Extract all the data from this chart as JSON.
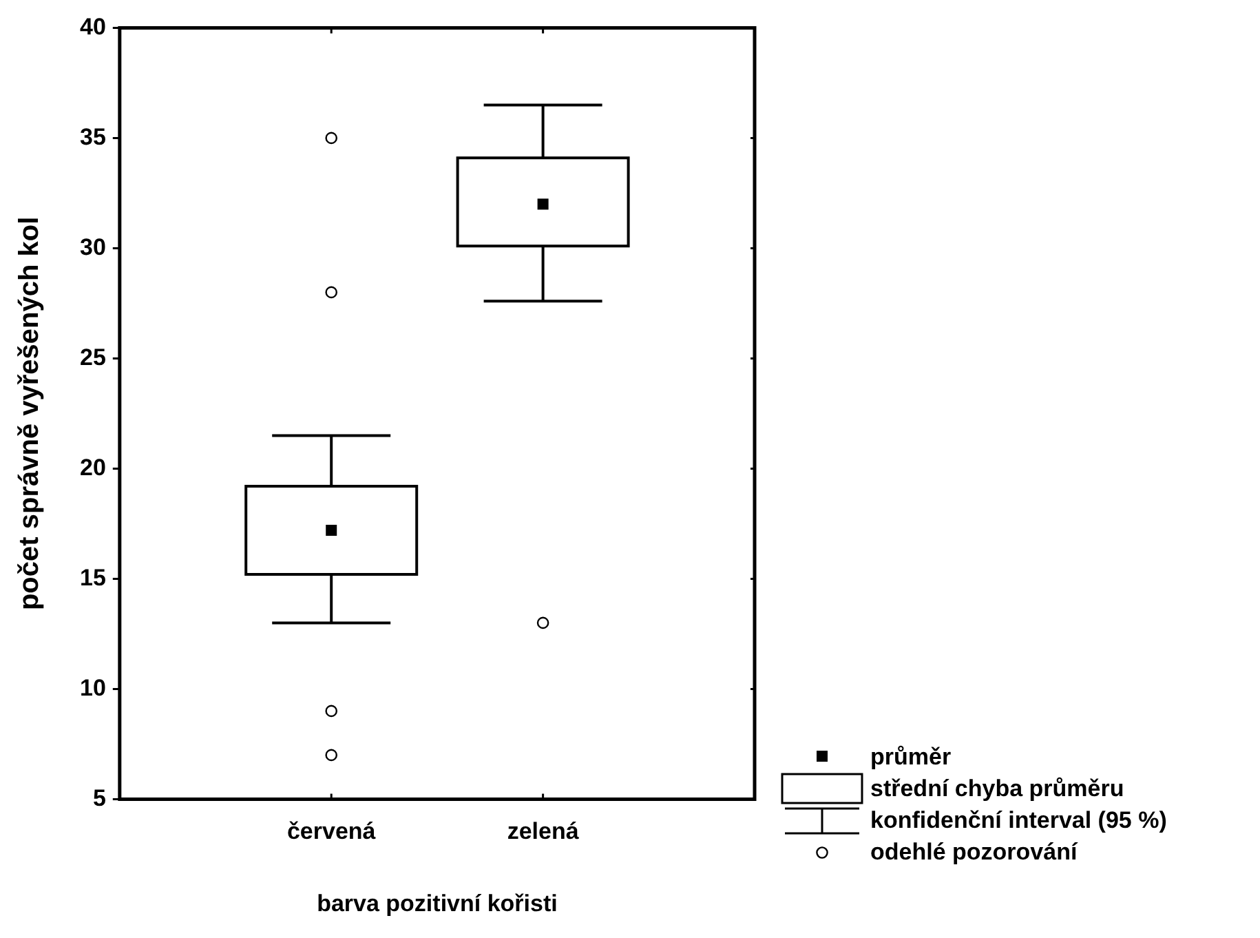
{
  "chart_data": {
    "type": "box",
    "xlabel": "barva pozitivní kořisti",
    "ylabel": "počet správně vyřešených kol",
    "categories": [
      "červená",
      "zelená"
    ],
    "boxes": [
      {
        "low": 13.0,
        "q1": 15.2,
        "median": 17.2,
        "q3": 19.2,
        "high": 21.5,
        "outliers": [
          35,
          28,
          9,
          7
        ]
      },
      {
        "low": 27.6,
        "q1": 30.1,
        "median": 32.0,
        "q3": 34.1,
        "high": 36.5,
        "outliers": [
          13
        ]
      }
    ],
    "color": "#000000",
    "ylim": [
      5,
      40
    ],
    "yticks": [
      5,
      10,
      15,
      20,
      25,
      30,
      35,
      40
    ],
    "grid": false,
    "annotations": [
      "průměr",
      "střední chyba průměru",
      "konfidenční interval (95 %)",
      "odehlé pozorování"
    ]
  }
}
